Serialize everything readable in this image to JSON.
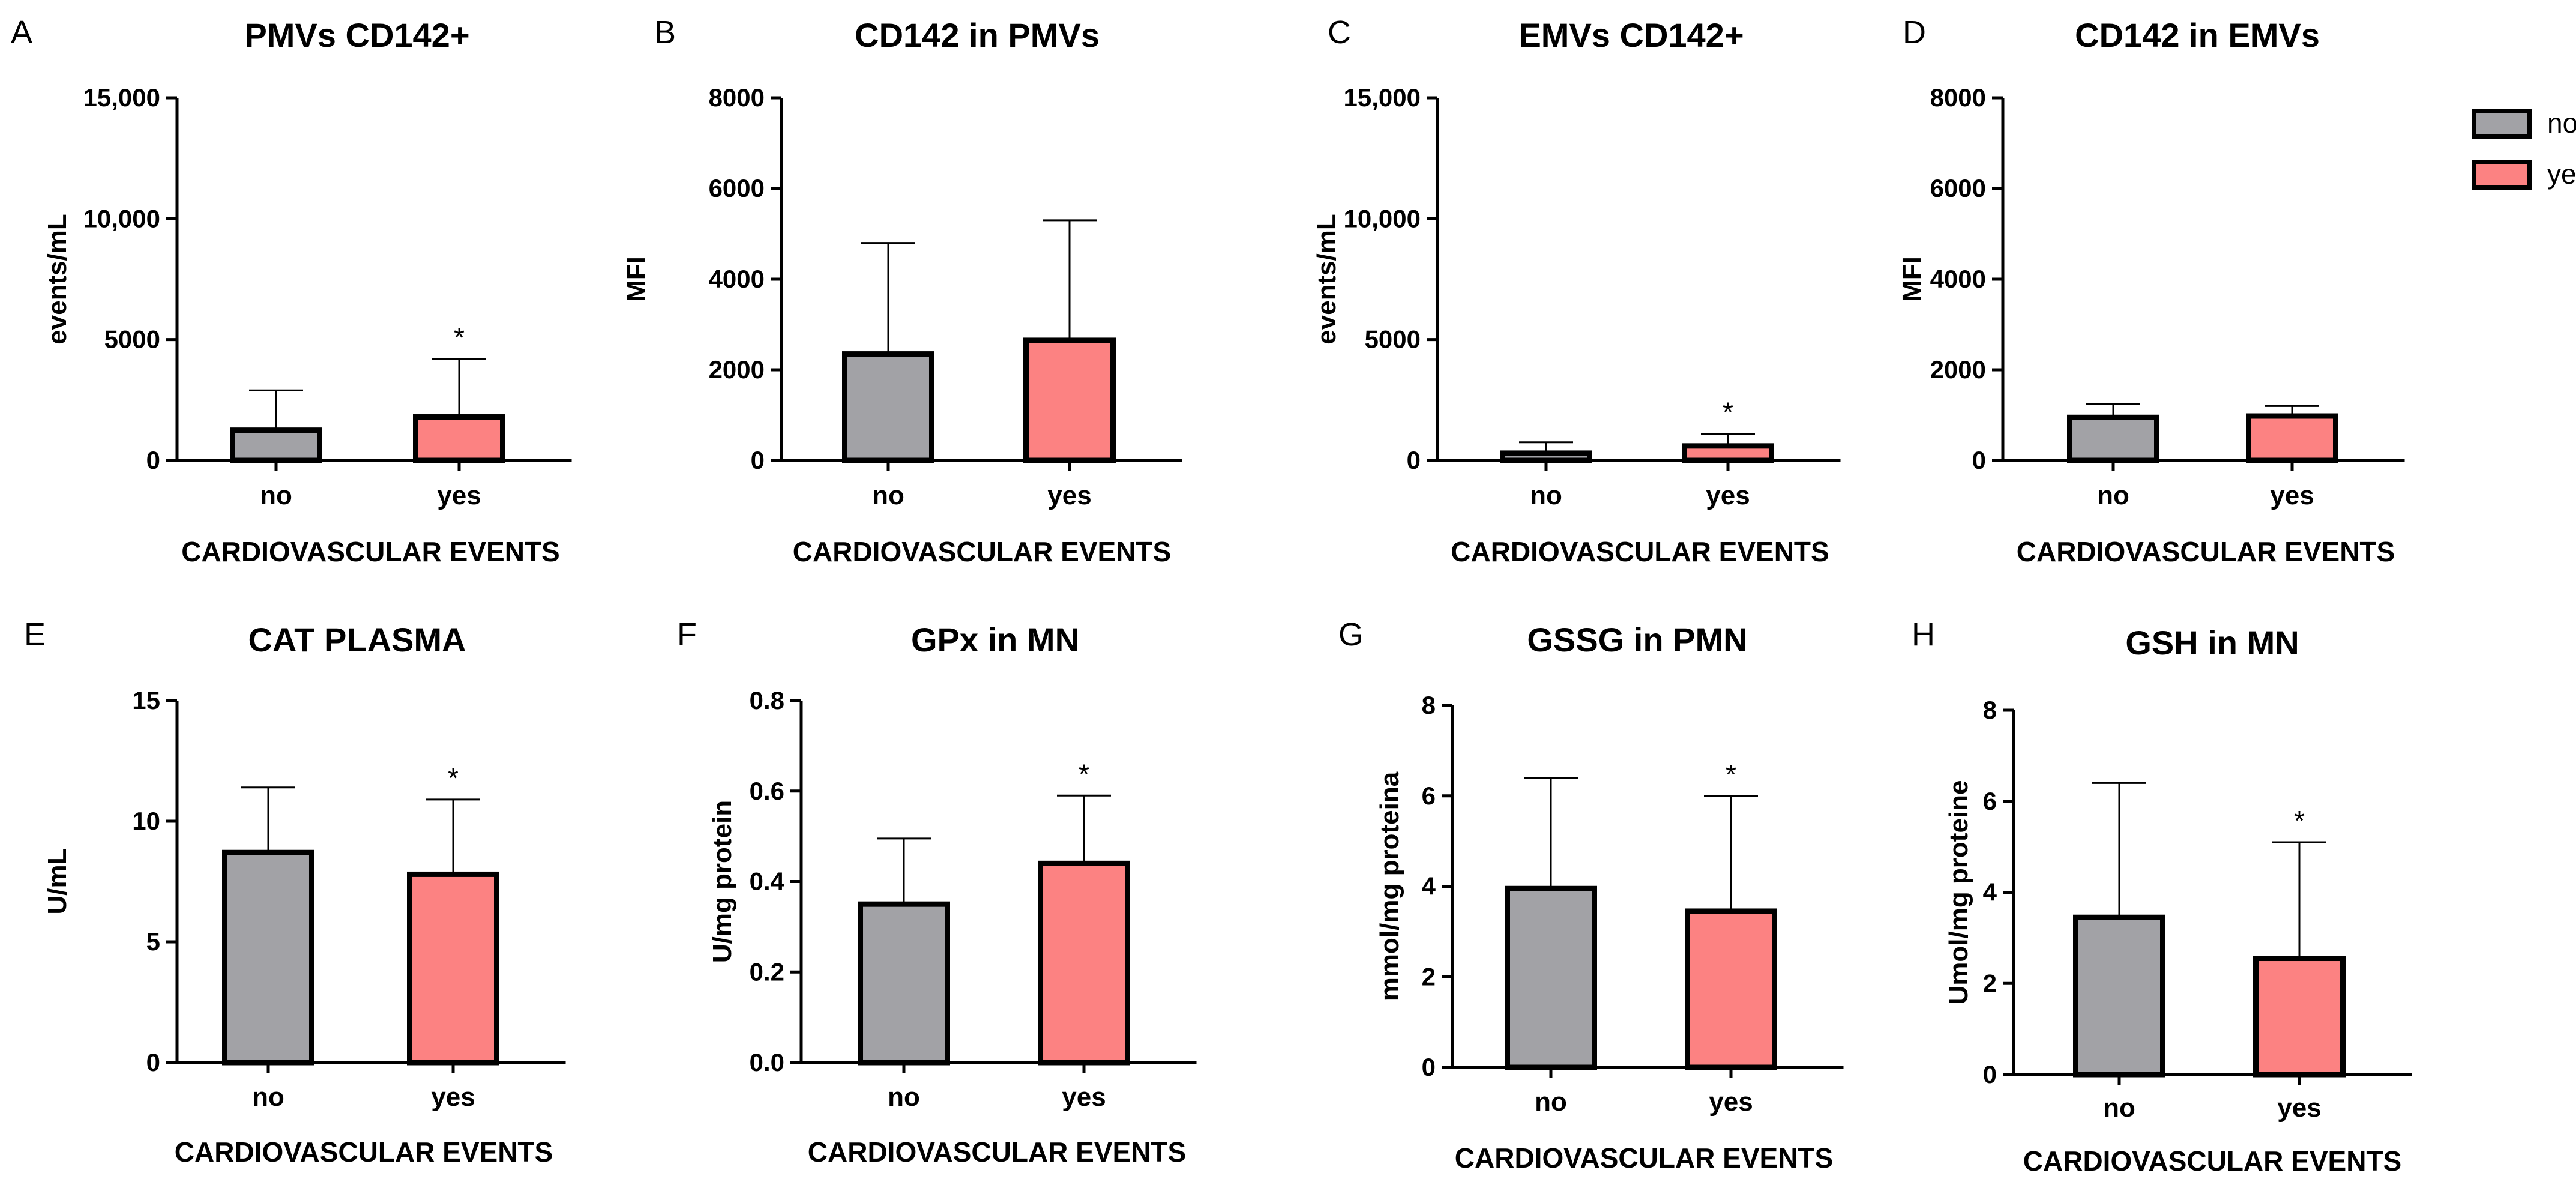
{
  "colors": {
    "no": "#a2a2a6",
    "yes": "#fc8282",
    "outline": "#000000"
  },
  "legend": [
    {
      "key": "no",
      "label": "no"
    },
    {
      "key": "yes",
      "label": "yes"
    }
  ],
  "chart_data": [
    {
      "id": "A",
      "type": "bar",
      "letter": "A",
      "title": "PMVs CD142+",
      "ylabel": "events/mL",
      "xlabel": "CARDIOVASCULAR EVENTS",
      "categories": [
        "no",
        "yes"
      ],
      "values": [
        1250,
        1800
      ],
      "errors": [
        2900,
        4200
      ],
      "significance": [
        "",
        "*"
      ],
      "ylim": [
        0,
        15000
      ],
      "yticks": [
        0,
        5000,
        10000,
        15000
      ],
      "ytick_labels": [
        "0",
        "5000",
        "10,000",
        "15,000"
      ]
    },
    {
      "id": "B",
      "type": "bar",
      "letter": "B",
      "title": "CD142 in PMVs",
      "ylabel": "MFI",
      "xlabel": "CARDIOVASCULAR EVENTS",
      "categories": [
        "no",
        "yes"
      ],
      "values": [
        2350,
        2650
      ],
      "errors": [
        4800,
        5300
      ],
      "significance": [
        "",
        ""
      ],
      "ylim": [
        0,
        8000
      ],
      "yticks": [
        0,
        2000,
        4000,
        6000,
        8000
      ],
      "ytick_labels": [
        "0",
        "2000",
        "4000",
        "6000",
        "8000"
      ]
    },
    {
      "id": "C",
      "type": "bar",
      "letter": "C",
      "title": "EMVs CD142+",
      "ylabel": "events/mL",
      "xlabel": "CARDIOVASCULAR EVENTS",
      "categories": [
        "no",
        "yes"
      ],
      "values": [
        300,
        600
      ],
      "errors": [
        750,
        1100
      ],
      "significance": [
        "",
        "*"
      ],
      "ylim": [
        0,
        15000
      ],
      "yticks": [
        0,
        5000,
        10000,
        15000
      ],
      "ytick_labels": [
        "0",
        "5000",
        "10,000",
        "15,000"
      ]
    },
    {
      "id": "D",
      "type": "bar",
      "letter": "D",
      "title": "CD142 in EMVs",
      "ylabel": "MFI",
      "xlabel": "CARDIOVASCULAR EVENTS",
      "categories": [
        "no",
        "yes"
      ],
      "values": [
        950,
        980
      ],
      "errors": [
        1250,
        1200
      ],
      "significance": [
        "",
        ""
      ],
      "ylim": [
        0,
        8000
      ],
      "yticks": [
        0,
        2000,
        4000,
        6000,
        8000
      ],
      "ytick_labels": [
        "0",
        "2000",
        "4000",
        "6000",
        "8000"
      ]
    },
    {
      "id": "E",
      "type": "bar",
      "letter": "E",
      "title": "CAT PLASMA",
      "ylabel": "U/mL",
      "xlabel": "CARDIOVASCULAR EVENTS",
      "categories": [
        "no",
        "yes"
      ],
      "values": [
        8.7,
        7.8
      ],
      "errors": [
        11.4,
        10.9
      ],
      "significance": [
        "",
        "*"
      ],
      "ylim": [
        0,
        15
      ],
      "yticks": [
        0,
        5,
        10,
        15
      ],
      "ytick_labels": [
        "0",
        "5",
        "10",
        "15"
      ]
    },
    {
      "id": "F",
      "type": "bar",
      "letter": "F",
      "title": "GPx in MN",
      "ylabel": "U/mg protein",
      "xlabel": "CARDIOVASCULAR EVENTS",
      "categories": [
        "no",
        "yes"
      ],
      "values": [
        0.35,
        0.44
      ],
      "errors": [
        0.495,
        0.59
      ],
      "significance": [
        "",
        "*"
      ],
      "ylim": [
        0,
        0.8
      ],
      "yticks": [
        0,
        0.2,
        0.4,
        0.6,
        0.8
      ],
      "ytick_labels": [
        "0.0",
        "0.2",
        "0.4",
        "0.6",
        "0.8"
      ]
    },
    {
      "id": "G",
      "type": "bar",
      "letter": "G",
      "title": "GSSG in PMN",
      "ylabel": "mmol/mg proteina",
      "xlabel": "CARDIOVASCULAR EVENTS",
      "categories": [
        "no",
        "yes"
      ],
      "values": [
        3.95,
        3.45
      ],
      "errors": [
        6.4,
        6.0
      ],
      "significance": [
        "",
        "*"
      ],
      "ylim": [
        0,
        8
      ],
      "yticks": [
        0,
        2,
        4,
        6,
        8
      ],
      "ytick_labels": [
        "0",
        "2",
        "4",
        "6",
        "8"
      ]
    },
    {
      "id": "H",
      "type": "bar",
      "letter": "H",
      "title": "GSH in MN",
      "ylabel": "Umol/mg proteine",
      "xlabel": "CARDIOVASCULAR EVENTS",
      "categories": [
        "no",
        "yes"
      ],
      "values": [
        3.45,
        2.55
      ],
      "errors": [
        6.4,
        5.1
      ],
      "significance": [
        "",
        "*"
      ],
      "ylim": [
        0,
        8
      ],
      "yticks": [
        0,
        2,
        4,
        6,
        8
      ],
      "ytick_labels": [
        "0",
        "2",
        "4",
        "6",
        "8"
      ]
    }
  ]
}
